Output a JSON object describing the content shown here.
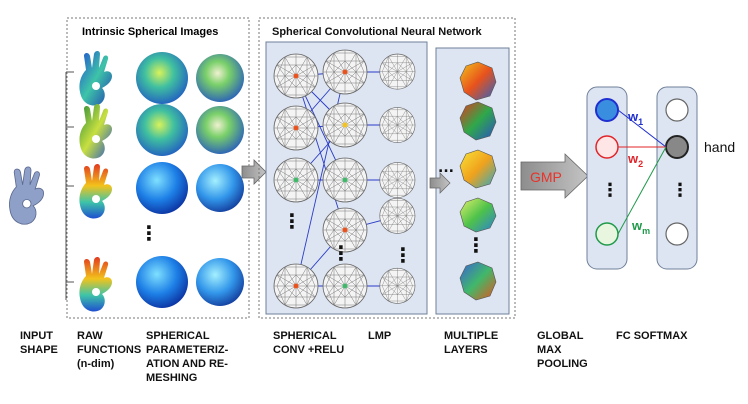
{
  "panels": {
    "intrinsic_title": "Intrinsic Spherical Images",
    "scnn_title": "Spherical Convolutional Neural Network"
  },
  "network": {
    "ellipsis_dots": "⋮",
    "layers_dots": "...",
    "gmp_label": "GMP",
    "weights": {
      "w1": "w",
      "w1_sub": "1",
      "w2": "w",
      "w2_sub": "2",
      "wm": "w",
      "wm_sub": "m"
    },
    "output_class": "hand"
  },
  "colors": {
    "panel_fill": "#dde5f2",
    "panel_stroke": "#6f7f99",
    "w1": "#1f2fd0",
    "w2": "#e0252a",
    "wm": "#1f9a4a",
    "gmp_text": "#e8332a",
    "arrow_fill": "#c9c9c9"
  },
  "captions": {
    "input_shape": [
      "INPUT",
      "SHAPE"
    ],
    "raw_functions": [
      "RAW",
      "FUNCTIONS",
      "(n-dim)"
    ],
    "spherical_param": [
      "SPHERICAL",
      "PARAMETERIZ-",
      "ATION AND RE-",
      "MESHING"
    ],
    "spherical_conv": [
      "SPHERICAL",
      "CONV +RELU"
    ],
    "lmp": [
      "LMP"
    ],
    "multiple_layers": [
      "MULTIPLE",
      "LAYERS"
    ],
    "global_max_pooling": [
      "GLOBAL",
      "MAX",
      "POOLING"
    ],
    "fc_softmax": [
      "FC SOFTMAX"
    ]
  }
}
